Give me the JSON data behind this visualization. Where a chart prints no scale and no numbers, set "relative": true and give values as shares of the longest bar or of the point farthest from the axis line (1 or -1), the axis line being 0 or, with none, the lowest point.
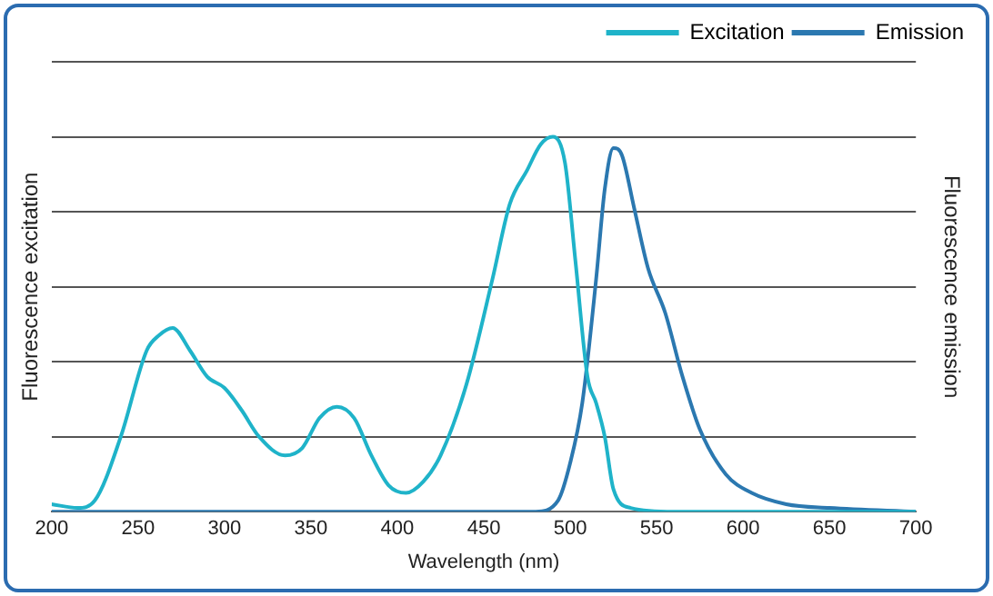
{
  "chart_data": {
    "type": "line",
    "relative": true,
    "xlabel": "Wavelength (nm)",
    "ylabel": "Fluorescence excitation",
    "y2label": "Fluorescence emission",
    "xlim": [
      200,
      700
    ],
    "xticks": [
      200,
      250,
      300,
      350,
      400,
      450,
      500,
      550,
      600,
      650,
      700
    ],
    "grid": "y",
    "legend": "top right",
    "marker": "none",
    "line_style": "solid",
    "series": [
      {
        "name": "Excitation",
        "color": "#1fb3c9",
        "x": [
          200,
          215,
          225,
          240,
          255,
          262,
          270,
          280,
          290,
          300,
          310,
          320,
          335,
          345,
          355,
          365,
          375,
          385,
          395,
          405,
          415,
          425,
          440,
          455,
          465,
          475,
          483,
          490,
          497,
          503,
          510,
          515,
          520,
          525,
          535,
          560,
          700
        ],
        "values": [
          0.02,
          0.01,
          0.03,
          0.2,
          0.43,
          0.47,
          0.49,
          0.43,
          0.36,
          0.33,
          0.27,
          0.2,
          0.15,
          0.17,
          0.25,
          0.28,
          0.25,
          0.15,
          0.07,
          0.05,
          0.08,
          0.15,
          0.34,
          0.62,
          0.82,
          0.91,
          0.98,
          1,
          0.93,
          0.67,
          0.36,
          0.29,
          0.2,
          0.06,
          0.01,
          0,
          0
        ]
      },
      {
        "name": "Emission",
        "color": "#2b78b0",
        "x": [
          200,
          480,
          493,
          500,
          507,
          515,
          520,
          525,
          530,
          537,
          545,
          555,
          565,
          575,
          590,
          605,
          625,
          650,
          700
        ],
        "values": [
          0,
          0,
          0.03,
          0.13,
          0.29,
          0.62,
          0.86,
          0.97,
          0.95,
          0.81,
          0.65,
          0.53,
          0.36,
          0.22,
          0.1,
          0.05,
          0.02,
          0.01,
          0
        ]
      }
    ]
  }
}
